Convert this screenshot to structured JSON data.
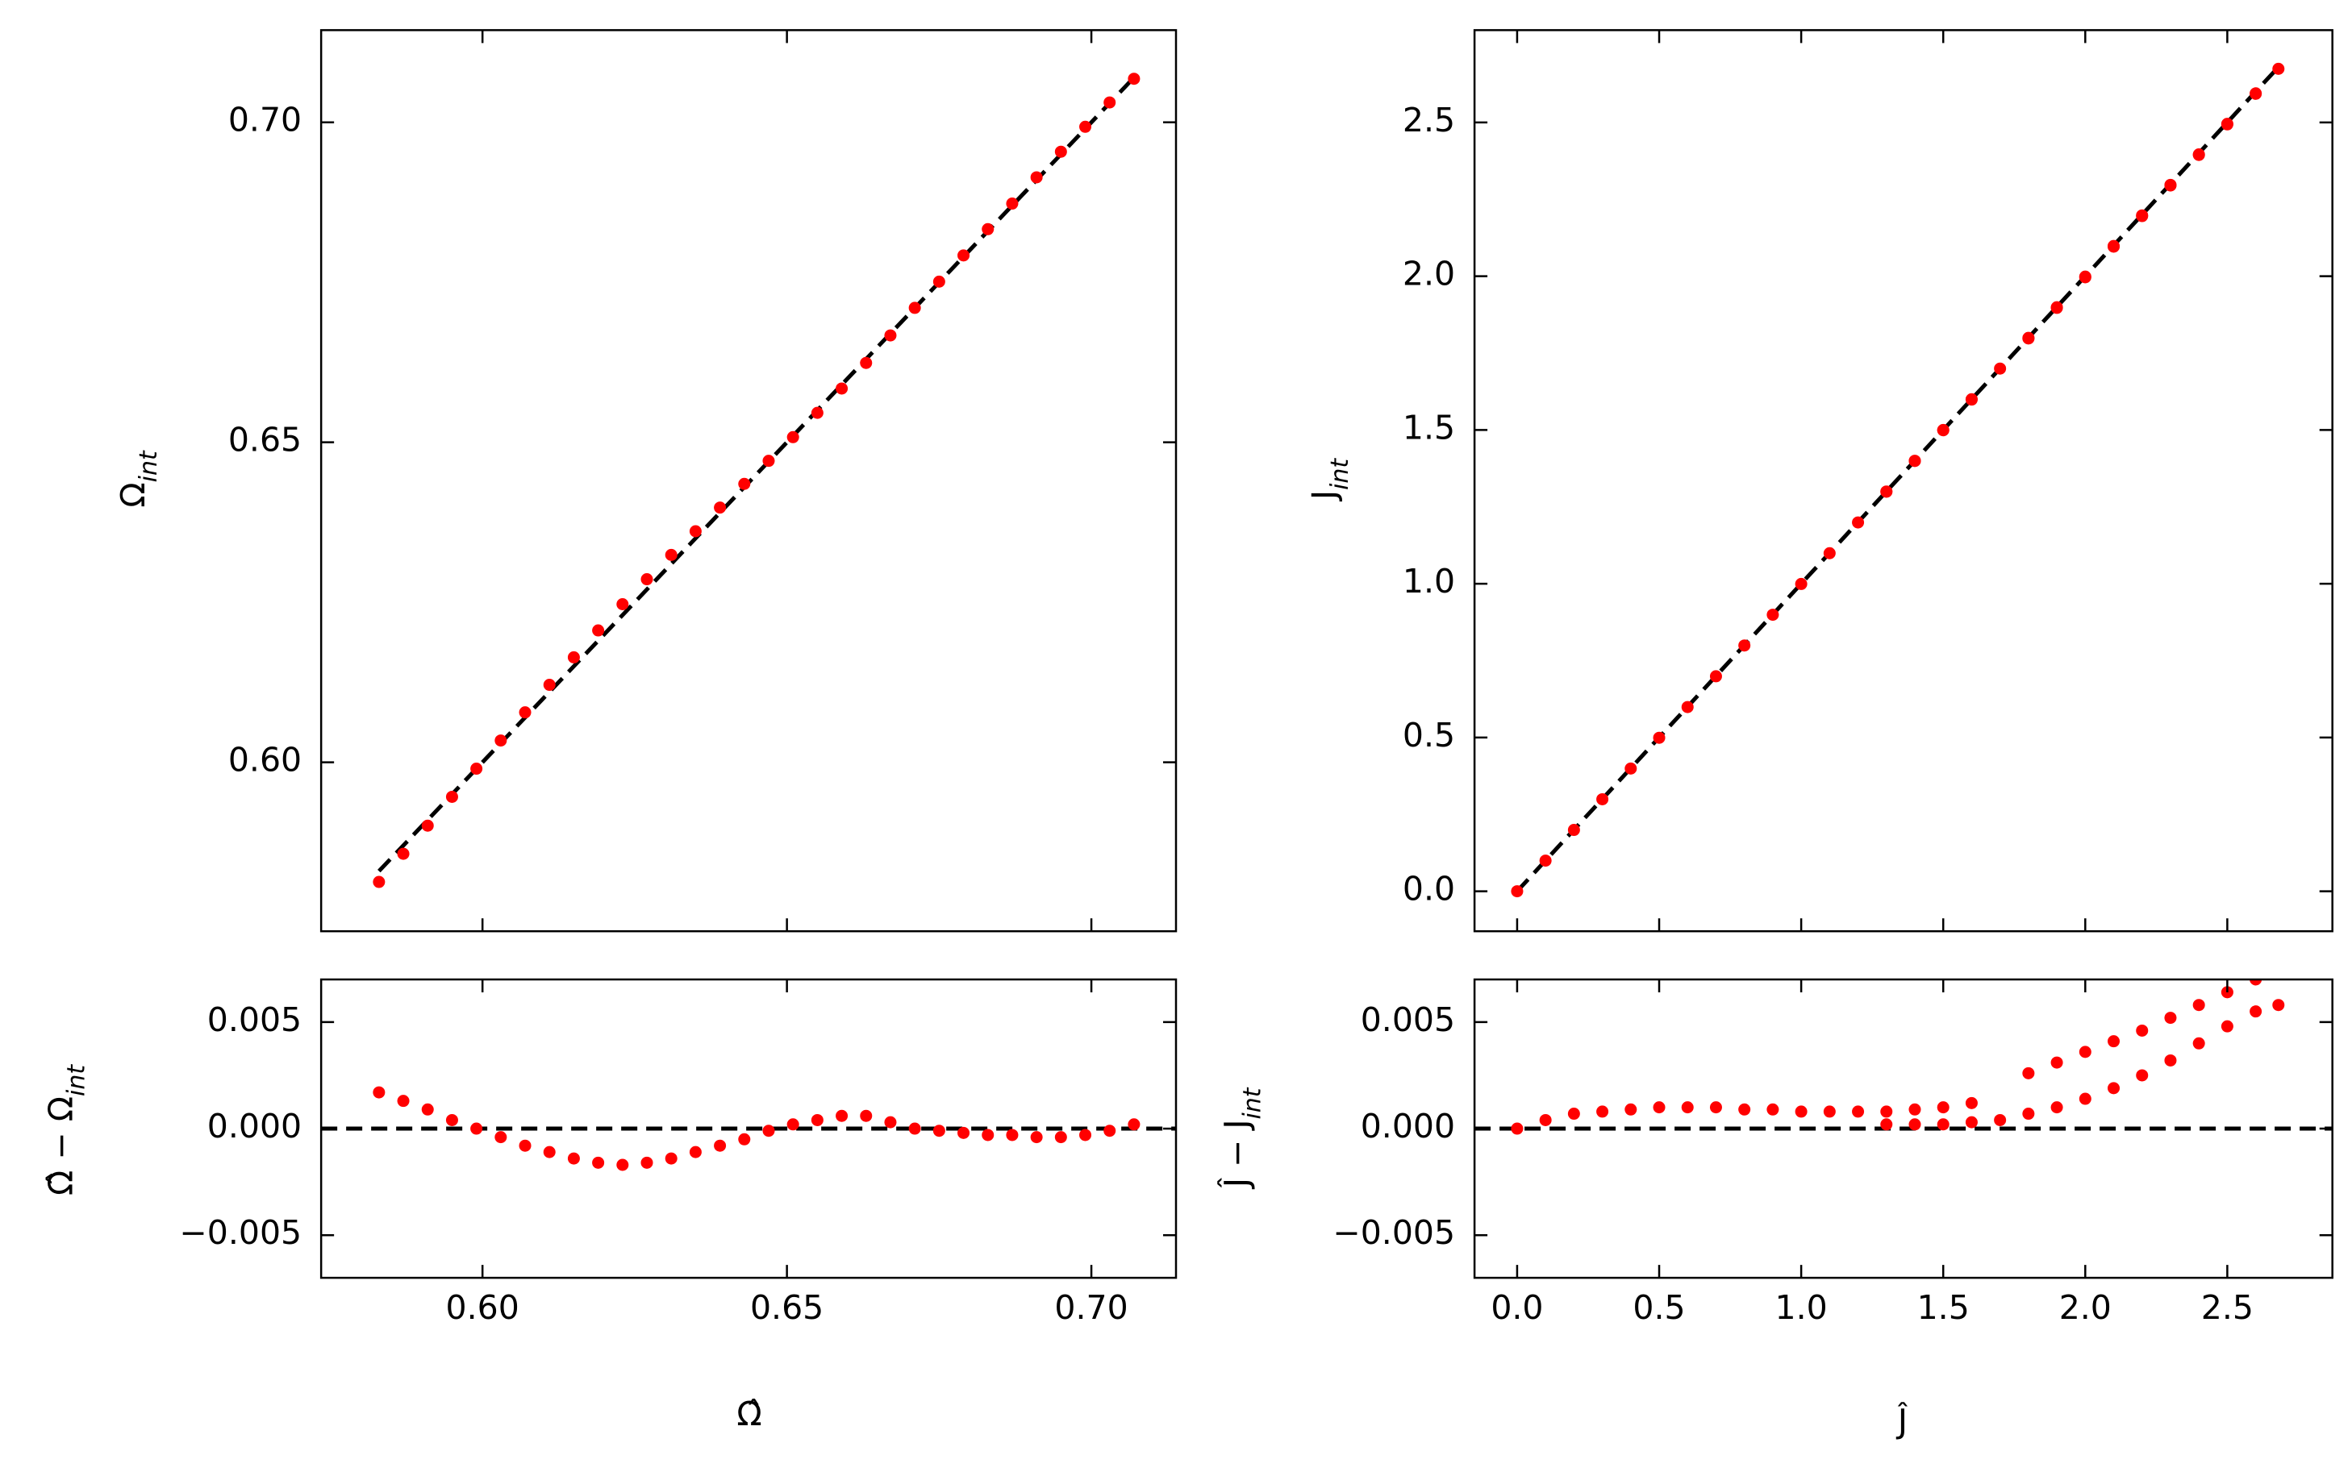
{
  "chart_data": [
    {
      "type": "scatter",
      "ylabel": [
        "Ω",
        "int"
      ],
      "x": [
        0.583,
        0.587,
        0.591,
        0.595,
        0.599,
        0.603,
        0.607,
        0.611,
        0.615,
        0.619,
        0.623,
        0.627,
        0.631,
        0.635,
        0.639,
        0.643,
        0.647,
        0.651,
        0.655,
        0.659,
        0.663,
        0.667,
        0.671,
        0.675,
        0.679,
        0.683,
        0.687,
        0.691,
        0.695,
        0.699,
        0.703,
        0.707
      ],
      "values": [
        0.5813,
        0.5857,
        0.5901,
        0.5946,
        0.599,
        0.6034,
        0.6078,
        0.6121,
        0.6164,
        0.6206,
        0.6247,
        0.6286,
        0.6324,
        0.6361,
        0.6398,
        0.6435,
        0.6471,
        0.6508,
        0.6546,
        0.6584,
        0.6624,
        0.6667,
        0.671,
        0.6751,
        0.6792,
        0.6833,
        0.6873,
        0.6914,
        0.6954,
        0.6993,
        0.7031,
        0.7068
      ],
      "color": "#ff0000",
      "xlim": [
        0.5735,
        0.7139
      ],
      "ylim": [
        0.5736,
        0.7144
      ],
      "yticks": [
        {
          "value": 0.6,
          "label": "0.60"
        },
        0.65,
        {
          "value": 0.7,
          "label": "0.70"
        }
      ],
      "reference_line": {
        "slope": 1,
        "intercept": 0,
        "color": "#000000",
        "span": "data"
      }
    },
    {
      "type": "scatter",
      "xlabel": [
        "Ω̂"
      ],
      "ylabel": [
        "Ω̂ − Ω",
        "int"
      ],
      "x": [
        0.583,
        0.587,
        0.591,
        0.595,
        0.599,
        0.603,
        0.607,
        0.611,
        0.615,
        0.619,
        0.623,
        0.627,
        0.631,
        0.635,
        0.639,
        0.643,
        0.647,
        0.651,
        0.655,
        0.659,
        0.663,
        0.667,
        0.671,
        0.675,
        0.679,
        0.683,
        0.687,
        0.691,
        0.695,
        0.699,
        0.703,
        0.707
      ],
      "values": [
        0.0017,
        0.0013,
        0.0009,
        0.0004,
        0.0,
        -0.0004,
        -0.0008,
        -0.0011,
        -0.0014,
        -0.0016,
        -0.0017,
        -0.0016,
        -0.0014,
        -0.0011,
        -0.0008,
        -0.0005,
        -0.0001,
        0.0002,
        0.0004,
        0.0006,
        0.0006,
        0.0003,
        0.0,
        -0.0001,
        -0.0002,
        -0.0003,
        -0.0003,
        -0.0004,
        -0.0004,
        -0.0003,
        -0.0001,
        0.0002
      ],
      "color": "#ff0000",
      "xlim": [
        0.5735,
        0.7139
      ],
      "ylim": [
        -0.007,
        0.007
      ],
      "xticks": [
        {
          "value": 0.6,
          "label": "0.60"
        },
        0.65,
        {
          "value": 0.7,
          "label": "0.70"
        }
      ],
      "yticks": [
        {
          "value": -0.005,
          "label": "−0.005"
        },
        {
          "value": 0,
          "label": "0.000"
        },
        0.005
      ],
      "reference_line": {
        "slope": 0,
        "intercept": 0,
        "color": "#000000",
        "span": "axis"
      }
    },
    {
      "type": "scatter",
      "ylabel": [
        "J",
        "int"
      ],
      "x": [
        0,
        0.1,
        0.2,
        0.3,
        0.4,
        0.5,
        0.6,
        0.7,
        0.8,
        0.9,
        1.0,
        1.1,
        1.2,
        1.3,
        1.4,
        1.5,
        1.6,
        1.8,
        1.9,
        2.0,
        2.1,
        2.2,
        2.3,
        2.4,
        2.5,
        2.6,
        1.3,
        1.4,
        1.5,
        1.6,
        1.7,
        1.8,
        1.9,
        2.0,
        2.1,
        2.2,
        2.3,
        2.4,
        2.5,
        2.6,
        2.68
      ],
      "values": [
        0,
        0.0996,
        0.1993,
        0.2992,
        0.3991,
        0.499,
        0.599,
        0.699,
        0.7991,
        0.8991,
        0.9992,
        1.0992,
        1.1992,
        1.2992,
        1.3991,
        1.499,
        1.5988,
        1.7974,
        1.8969,
        1.9964,
        2.0959,
        2.1954,
        2.2948,
        2.3942,
        2.4936,
        2.593,
        1.2998,
        1.3998,
        1.4998,
        1.5997,
        1.6996,
        1.7993,
        1.899,
        1.9986,
        2.0981,
        2.1975,
        2.2968,
        2.396,
        2.4952,
        2.5945,
        2.6742
      ],
      "color": "#ff0000",
      "xlim": [
        -0.15,
        2.87
      ],
      "ylim": [
        -0.13,
        2.8
      ],
      "yticks": [
        {
          "value": 0,
          "label": "0.0"
        },
        0.5,
        {
          "value": 1,
          "label": "1.0"
        },
        1.5,
        {
          "value": 2,
          "label": "2.0"
        },
        2.5
      ],
      "reference_line": {
        "slope": 1,
        "intercept": 0,
        "color": "#000000",
        "span": "data"
      }
    },
    {
      "type": "scatter",
      "xlabel": [
        "Ĵ"
      ],
      "ylabel": [
        "Ĵ − J",
        "int"
      ],
      "x": [
        0,
        0.1,
        0.2,
        0.3,
        0.4,
        0.5,
        0.6,
        0.7,
        0.8,
        0.9,
        1.0,
        1.1,
        1.2,
        1.3,
        1.4,
        1.5,
        1.6,
        1.8,
        1.9,
        2.0,
        2.1,
        2.2,
        2.3,
        2.4,
        2.5,
        2.6,
        1.3,
        1.4,
        1.5,
        1.6,
        1.7,
        1.8,
        1.9,
        2.0,
        2.1,
        2.2,
        2.3,
        2.4,
        2.5,
        2.6,
        2.68
      ],
      "values": [
        0,
        0.0004,
        0.0007,
        0.0008,
        0.0009,
        0.001,
        0.001,
        0.001,
        0.0009,
        0.0009,
        0.0008,
        0.0008,
        0.0008,
        0.0008,
        0.0009,
        0.001,
        0.0012,
        0.0026,
        0.0031,
        0.0036,
        0.0041,
        0.0046,
        0.0052,
        0.0058,
        0.0064,
        0.007,
        0.0002,
        0.0002,
        0.0002,
        0.0003,
        0.0004,
        0.0007,
        0.001,
        0.0014,
        0.0019,
        0.0025,
        0.0032,
        0.004,
        0.0048,
        0.0055,
        0.0058
      ],
      "color": "#ff0000",
      "xlim": [
        -0.15,
        2.87
      ],
      "ylim": [
        -0.007,
        0.007
      ],
      "xticks": [
        {
          "value": 0,
          "label": "0.0"
        },
        0.5,
        {
          "value": 1,
          "label": "1.0"
        },
        1.5,
        {
          "value": 2,
          "label": "2.0"
        },
        2.5
      ],
      "yticks": [
        {
          "value": -0.005,
          "label": "−0.005"
        },
        {
          "value": 0,
          "label": "0.000"
        },
        0.005
      ],
      "reference_line": {
        "slope": 0,
        "intercept": 0,
        "color": "#000000",
        "span": "axis"
      }
    }
  ]
}
